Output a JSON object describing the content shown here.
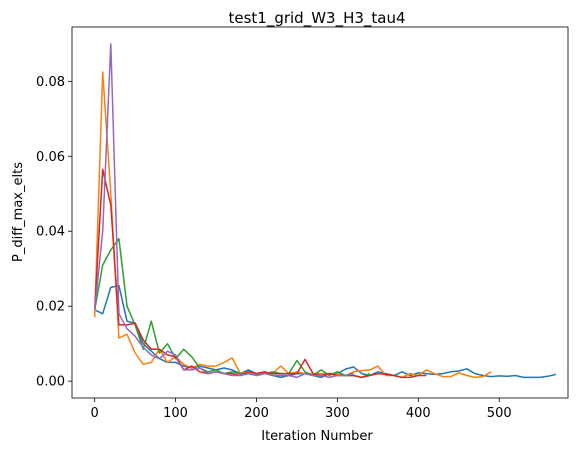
{
  "chart_data": {
    "type": "line",
    "title": "test1_grid_W3_H3_tau4",
    "xlabel": "Iteration Number",
    "ylabel": "P_diff_max_elts",
    "xlim": [
      -28,
      585
    ],
    "ylim": [
      -0.0045,
      0.0945
    ],
    "xticks": [
      0,
      100,
      200,
      300,
      400,
      500
    ],
    "xtick_labels": [
      "0",
      "100",
      "200",
      "300",
      "400",
      "500"
    ],
    "yticks": [
      0,
      0.02,
      0.04,
      0.06,
      0.08
    ],
    "ytick_labels": [
      "0.00",
      "0.02",
      "0.04",
      "0.06",
      "0.08"
    ],
    "grid": false,
    "legend": "none",
    "series": [
      {
        "color": "#1f77b4",
        "x": [
          0,
          10,
          20,
          30,
          40,
          50,
          60,
          70,
          80,
          90,
          100,
          110,
          120,
          130,
          140,
          150,
          160,
          170,
          180,
          190,
          200,
          210,
          220,
          230,
          240,
          250,
          260,
          270,
          280,
          290,
          300,
          310,
          320,
          330,
          340,
          350,
          360,
          370,
          380,
          390,
          400,
          410,
          420,
          430,
          440,
          450,
          460,
          470,
          480,
          490,
          500,
          510,
          520,
          530,
          540,
          550,
          560,
          570
        ],
        "y": [
          0.019,
          0.018,
          0.025,
          0.0255,
          0.016,
          0.0155,
          0.01,
          0.008,
          0.006,
          0.005,
          0.005,
          0.004,
          0.0035,
          0.004,
          0.0035,
          0.003,
          0.0035,
          0.003,
          0.002,
          0.003,
          0.002,
          0.0025,
          0.0015,
          0.001,
          0.0015,
          0.002,
          0.002,
          0.0015,
          0.001,
          0.002,
          0.002,
          0.0032,
          0.0038,
          0.002,
          0.0015,
          0.0025,
          0.002,
          0.0015,
          0.0025,
          0.0015,
          0.0022,
          0.002,
          0.0018,
          0.002,
          0.0025,
          0.0027,
          0.0033,
          0.002,
          0.0015,
          0.0012,
          0.0014,
          0.0013,
          0.0015,
          0.001,
          0.001,
          0.001,
          0.0013,
          0.0018
        ]
      },
      {
        "color": "#ff7f0e",
        "x": [
          0,
          10,
          20,
          30,
          40,
          50,
          60,
          70,
          80,
          90,
          100,
          110,
          120,
          130,
          140,
          150,
          160,
          170,
          180,
          190,
          200,
          210,
          220,
          230,
          240,
          250,
          260,
          270,
          280,
          290,
          300,
          310,
          320,
          330,
          340,
          350,
          360,
          370,
          380,
          390,
          400,
          410,
          420,
          430,
          440,
          450,
          460,
          470,
          480,
          490
        ],
        "y": [
          0.017,
          0.0825,
          0.05,
          0.0115,
          0.0125,
          0.0075,
          0.0045,
          0.005,
          0.0085,
          0.005,
          0.0065,
          0.0045,
          0.0035,
          0.0045,
          0.004,
          0.004,
          0.005,
          0.0062,
          0.002,
          0.0025,
          0.002,
          0.002,
          0.002,
          0.004,
          0.002,
          0.0025,
          0.002,
          0.002,
          0.002,
          0.002,
          0.002,
          0.0015,
          0.0025,
          0.0028,
          0.003,
          0.004,
          0.0015,
          0.0015,
          0.001,
          0.002,
          0.0015,
          0.003,
          0.002,
          0.0012,
          0.0012,
          0.0022,
          0.0015,
          0.001,
          0.0012,
          0.0025
        ]
      },
      {
        "color": "#2ca02c",
        "x": [
          0,
          10,
          20,
          30,
          40,
          50,
          60,
          70,
          80,
          90,
          100,
          110,
          120,
          130,
          140,
          150,
          160,
          170,
          180,
          190,
          200,
          210,
          220,
          230,
          240,
          250,
          260,
          270,
          280,
          290,
          300,
          310,
          320,
          330,
          340
        ],
        "y": [
          0.019,
          0.031,
          0.035,
          0.038,
          0.02,
          0.015,
          0.0085,
          0.016,
          0.0075,
          0.01,
          0.006,
          0.0085,
          0.0065,
          0.0035,
          0.0025,
          0.003,
          0.002,
          0.0025,
          0.002,
          0.002,
          0.0015,
          0.002,
          0.0025,
          0.002,
          0.002,
          0.0055,
          0.0025,
          0.0015,
          0.003,
          0.0015,
          0.0025,
          0.0015,
          0.0015,
          0.001,
          0.002
        ]
      },
      {
        "color": "#d62728",
        "x": [
          0,
          10,
          20,
          30,
          40,
          50,
          60,
          70,
          80,
          90,
          100,
          110,
          120,
          130,
          140,
          150,
          160,
          170,
          180,
          190,
          200,
          210,
          220,
          230,
          240,
          250,
          260,
          270,
          280,
          290,
          300,
          310,
          320,
          330,
          340,
          350,
          360,
          370,
          380,
          390,
          400,
          410
        ],
        "y": [
          0.019,
          0.0565,
          0.047,
          0.015,
          0.015,
          0.0155,
          0.011,
          0.0085,
          0.0085,
          0.007,
          0.0065,
          0.003,
          0.004,
          0.0025,
          0.002,
          0.0025,
          0.002,
          0.002,
          0.0015,
          0.0025,
          0.002,
          0.0025,
          0.002,
          0.002,
          0.002,
          0.002,
          0.0058,
          0.002,
          0.0015,
          0.002,
          0.0015,
          0.0015,
          0.0015,
          0.001,
          0.0015,
          0.002,
          0.0018,
          0.0015,
          0.001,
          0.001,
          0.0015,
          0.0015
        ]
      },
      {
        "color": "#9467bd",
        "x": [
          0,
          10,
          20,
          30,
          40,
          50,
          60,
          70,
          80,
          90,
          100,
          110,
          120,
          130,
          140,
          150,
          160,
          170,
          180,
          190,
          200,
          210,
          220,
          230,
          240,
          250,
          260,
          270,
          280,
          290,
          300,
          310,
          320
        ],
        "y": [
          0.019,
          0.04,
          0.09,
          0.018,
          0.014,
          0.012,
          0.009,
          0.007,
          0.006,
          0.008,
          0.007,
          0.003,
          0.003,
          0.0035,
          0.002,
          0.0025,
          0.002,
          0.0015,
          0.0015,
          0.002,
          0.0015,
          0.002,
          0.0015,
          0.0015,
          0.0015,
          0.001,
          0.002,
          0.0015,
          0.0015,
          0.001,
          0.0015,
          0.0015,
          0.002
        ]
      }
    ]
  }
}
